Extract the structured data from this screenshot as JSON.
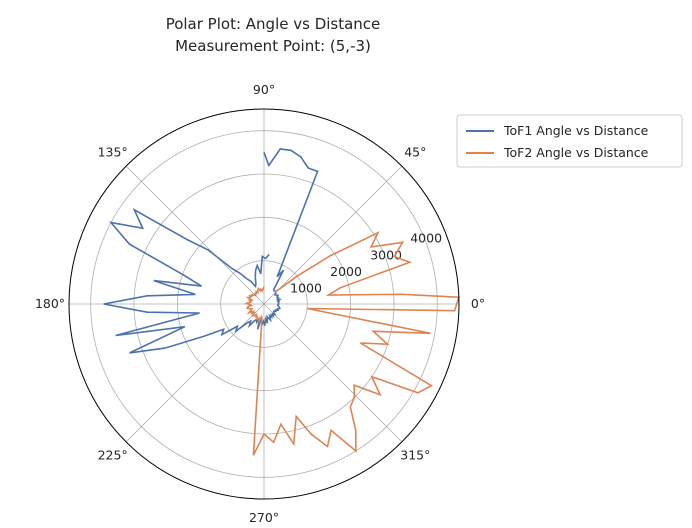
{
  "chart_data": {
    "type": "polar-line",
    "title": [
      "Polar Plot: Angle vs Distance",
      "Measurement Point: (5,-3)"
    ],
    "angle_ticks": [
      "0°",
      "45°",
      "90°",
      "135°",
      "180°",
      "225°",
      "270°",
      "315°"
    ],
    "radial_ticks": [
      "1000",
      "2000",
      "3000",
      "4000"
    ],
    "radial_tick_values": [
      1000,
      2000,
      3000,
      4000
    ],
    "rlim": [
      0,
      4500
    ],
    "grid": true,
    "legend_position": "top-right",
    "series": [
      {
        "name": "ToF1 Angle vs Distance",
        "color": "#4c72b0",
        "points": [
          [
            84,
            1150
          ],
          [
            88,
            1050
          ],
          [
            92,
            1100
          ],
          [
            96,
            700
          ],
          [
            100,
            900
          ],
          [
            104,
            800
          ],
          [
            108,
            650
          ],
          [
            112,
            500
          ],
          [
            116,
            450
          ],
          [
            120,
            600
          ],
          [
            124,
            700
          ],
          [
            128,
            900
          ],
          [
            132,
            1100
          ],
          [
            136,
            1800
          ],
          [
            140,
            2300
          ],
          [
            144,
            3700
          ],
          [
            148,
            3300
          ],
          [
            152,
            4000
          ],
          [
            156,
            3400
          ],
          [
            160,
            2000
          ],
          [
            164,
            1500
          ],
          [
            168,
            2600
          ],
          [
            172,
            1600
          ],
          [
            176,
            2700
          ],
          [
            180,
            3700
          ],
          [
            184,
            2700
          ],
          [
            188,
            1500
          ],
          [
            192,
            3500
          ],
          [
            196,
            1900
          ],
          [
            200,
            3300
          ],
          [
            204,
            2500
          ],
          [
            208,
            1600
          ],
          [
            212,
            1100
          ],
          [
            216,
            1200
          ],
          [
            220,
            800
          ],
          [
            224,
            900
          ],
          [
            228,
            600
          ],
          [
            232,
            500
          ],
          [
            236,
            600
          ],
          [
            240,
            450
          ],
          [
            244,
            400
          ],
          [
            248,
            450
          ],
          [
            252,
            350
          ],
          [
            256,
            600
          ],
          [
            260,
            300
          ],
          [
            264,
            500
          ],
          [
            268,
            400
          ],
          [
            272,
            500
          ],
          [
            276,
            350
          ],
          [
            280,
            450
          ],
          [
            284,
            300
          ],
          [
            288,
            350
          ],
          [
            292,
            400
          ],
          [
            296,
            300
          ],
          [
            300,
            350
          ],
          [
            304,
            300
          ],
          [
            308,
            350
          ],
          [
            312,
            300
          ],
          [
            316,
            350
          ],
          [
            320,
            300
          ],
          [
            324,
            280
          ],
          [
            328,
            320
          ],
          [
            332,
            300
          ],
          [
            336,
            350
          ],
          [
            340,
            330
          ],
          [
            344,
            380
          ],
          [
            348,
            360
          ],
          [
            352,
            330
          ],
          [
            356,
            320
          ],
          [
            0,
            340
          ],
          [
            4,
            330
          ],
          [
            8,
            350
          ],
          [
            12,
            320
          ],
          [
            16,
            380
          ],
          [
            20,
            330
          ],
          [
            24,
            360
          ],
          [
            28,
            340
          ],
          [
            32,
            380
          ],
          [
            36,
            350
          ],
          [
            40,
            330
          ],
          [
            44,
            380
          ],
          [
            48,
            400
          ],
          [
            52,
            380
          ],
          [
            56,
            400
          ],
          [
            60,
            900
          ],
          [
            64,
            700
          ],
          [
            68,
            3300
          ],
          [
            72,
            3300
          ],
          [
            76,
            3500
          ],
          [
            80,
            3600
          ],
          [
            84,
            3600
          ],
          [
            88,
            3200
          ],
          [
            90,
            3500
          ]
        ]
      },
      {
        "name": "ToF2 Angle vs Distance",
        "color": "#dd8452",
        "points": [
          [
            90,
            400
          ],
          [
            94,
            350
          ],
          [
            98,
            300
          ],
          [
            102,
            350
          ],
          [
            106,
            320
          ],
          [
            110,
            380
          ],
          [
            114,
            350
          ],
          [
            118,
            300
          ],
          [
            122,
            340
          ],
          [
            126,
            300
          ],
          [
            130,
            320
          ],
          [
            134,
            280
          ],
          [
            138,
            300
          ],
          [
            142,
            350
          ],
          [
            146,
            330
          ],
          [
            150,
            380
          ],
          [
            154,
            350
          ],
          [
            158,
            400
          ],
          [
            162,
            300
          ],
          [
            166,
            350
          ],
          [
            170,
            300
          ],
          [
            174,
            330
          ],
          [
            178,
            400
          ],
          [
            182,
            350
          ],
          [
            186,
            300
          ],
          [
            190,
            380
          ],
          [
            194,
            400
          ],
          [
            198,
            350
          ],
          [
            202,
            300
          ],
          [
            206,
            330
          ],
          [
            210,
            400
          ],
          [
            214,
            300
          ],
          [
            218,
            350
          ],
          [
            222,
            300
          ],
          [
            226,
            380
          ],
          [
            230,
            350
          ],
          [
            234,
            300
          ],
          [
            238,
            350
          ],
          [
            242,
            330
          ],
          [
            246,
            380
          ],
          [
            250,
            350
          ],
          [
            254,
            420
          ],
          [
            258,
            300
          ],
          [
            262,
            350
          ],
          [
            266,
            3500
          ],
          [
            270,
            3000
          ],
          [
            274,
            3200
          ],
          [
            278,
            2800
          ],
          [
            282,
            3300
          ],
          [
            286,
            2700
          ],
          [
            290,
            3200
          ],
          [
            294,
            3600
          ],
          [
            298,
            3300
          ],
          [
            302,
            4000
          ],
          [
            306,
            3600
          ],
          [
            310,
            3100
          ],
          [
            314,
            3000
          ],
          [
            318,
            2800
          ],
          [
            322,
            3400
          ],
          [
            326,
            3000
          ],
          [
            330,
            4100
          ],
          [
            334,
            4300
          ],
          [
            338,
            2400
          ],
          [
            342,
            3000
          ],
          [
            346,
            2600
          ],
          [
            350,
            3900
          ],
          [
            354,
            1000
          ],
          [
            358,
            4400
          ],
          [
            2,
            4500
          ],
          [
            4,
            3200
          ],
          [
            8,
            1500
          ],
          [
            12,
            1800
          ],
          [
            16,
            3500
          ],
          [
            20,
            3200
          ],
          [
            24,
            3500
          ],
          [
            28,
            2800
          ],
          [
            32,
            3100
          ],
          [
            36,
            1900
          ],
          [
            40,
            1000
          ],
          [
            44,
            500
          ],
          [
            48,
            380
          ]
        ]
      }
    ]
  }
}
